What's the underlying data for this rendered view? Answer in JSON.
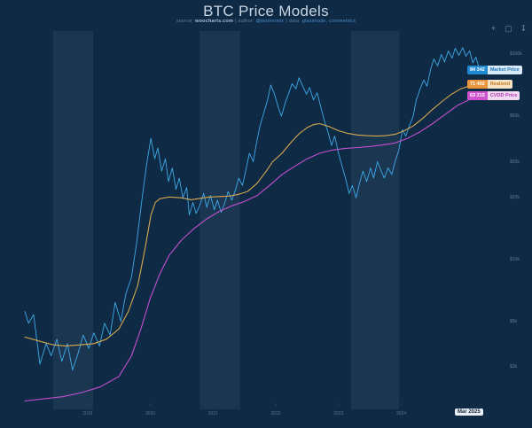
{
  "header": {
    "title": "BTC Price Models",
    "source_label": "source:",
    "source_value": "woocharts.com",
    "sep1": "|",
    "author_label": "author:",
    "author_value": "@woonomic",
    "sep2": "|",
    "data_label": "data:",
    "data_value": "glassnode, coinmetrics"
  },
  "toolbar": {
    "icons": [
      {
        "name": "zoom-in-icon",
        "glyph": "+"
      },
      {
        "name": "camera-icon",
        "glyph": "▢"
      },
      {
        "name": "download-icon",
        "glyph": "↧"
      }
    ]
  },
  "date_badge": "Mar 2025",
  "colors": {
    "background": "#0e2a44",
    "band": "rgba(190,215,240,0.07)",
    "market": "#3fa9e8",
    "realized": "#d9a84e",
    "cvdd": "#c44fd0",
    "axis_text": "#5d7da0"
  },
  "chart_data": {
    "type": "line",
    "title": "BTC Price Models",
    "x_range": [
      2018.0,
      2025.25
    ],
    "y_scale": "log",
    "y_range_usd": [
      2000,
      130000
    ],
    "units": "USD thousands",
    "grid": false,
    "legend_position": "right-edge-badges",
    "bands_t": [
      [
        2018.45,
        2019.09
      ],
      [
        2020.79,
        2021.43
      ],
      [
        2023.2,
        2023.97
      ]
    ],
    "y_ticks": [
      [
        100000,
        "$100k"
      ],
      [
        50000,
        "$50k"
      ],
      [
        30000,
        "$30k"
      ],
      [
        20000,
        "$20k"
      ],
      [
        10000,
        "$10k"
      ],
      [
        5000,
        "$5k"
      ],
      [
        3000,
        "$3k"
      ]
    ],
    "x_ticks": [
      {
        "year": 2019,
        "label": "2019"
      },
      {
        "year": 2020,
        "label": "2020"
      },
      {
        "year": 2021,
        "label": "2021"
      },
      {
        "year": 2022,
        "label": "2022"
      },
      {
        "year": 2023,
        "label": "2023"
      },
      {
        "year": 2024,
        "label": "2024"
      }
    ],
    "series": [
      {
        "name": "Market Price",
        "color": "#3fa9e8",
        "width": 0.9,
        "badge": {
          "value": "84 342",
          "label": "Market Price",
          "value_bg": "#1f8ad2",
          "label_bg": "#d8eaf8",
          "label_color": "#1d74b8"
        },
        "points": [
          [
            2018.0,
            5.6
          ],
          [
            2018.06,
            4.9
          ],
          [
            2018.14,
            5.4
          ],
          [
            2018.24,
            3.1
          ],
          [
            2018.34,
            3.9
          ],
          [
            2018.42,
            3.4
          ],
          [
            2018.51,
            4.1
          ],
          [
            2018.59,
            3.2
          ],
          [
            2018.68,
            3.9
          ],
          [
            2018.76,
            2.9
          ],
          [
            2018.85,
            3.5
          ],
          [
            2018.93,
            4.3
          ],
          [
            2019.02,
            3.7
          ],
          [
            2019.1,
            4.4
          ],
          [
            2019.19,
            3.8
          ],
          [
            2019.27,
            4.9
          ],
          [
            2019.36,
            4.3
          ],
          [
            2019.44,
            6.2
          ],
          [
            2019.53,
            5.0
          ],
          [
            2019.61,
            6.8
          ],
          [
            2019.7,
            8.2
          ],
          [
            2019.78,
            12.0
          ],
          [
            2019.87,
            20.0
          ],
          [
            2019.94,
            29.0
          ],
          [
            2020.01,
            39.0
          ],
          [
            2020.07,
            31.0
          ],
          [
            2020.12,
            35.0
          ],
          [
            2020.18,
            27.0
          ],
          [
            2020.24,
            31.0
          ],
          [
            2020.29,
            24.0
          ],
          [
            2020.35,
            28.0
          ],
          [
            2020.41,
            22.0
          ],
          [
            2020.46,
            25.0
          ],
          [
            2020.52,
            20.0
          ],
          [
            2020.58,
            22.5
          ],
          [
            2020.62,
            16.5
          ],
          [
            2020.68,
            19.0
          ],
          [
            2020.73,
            16.8
          ],
          [
            2020.79,
            18.5
          ],
          [
            2020.85,
            21.0
          ],
          [
            2020.9,
            18.0
          ],
          [
            2020.96,
            20.5
          ],
          [
            2021.02,
            17.5
          ],
          [
            2021.07,
            19.5
          ],
          [
            2021.13,
            17.0
          ],
          [
            2021.19,
            19.0
          ],
          [
            2021.24,
            21.5
          ],
          [
            2021.3,
            19.5
          ],
          [
            2021.36,
            22.0
          ],
          [
            2021.41,
            25.0
          ],
          [
            2021.47,
            23.0
          ],
          [
            2021.53,
            28.0
          ],
          [
            2021.58,
            33.0
          ],
          [
            2021.64,
            30.0
          ],
          [
            2021.7,
            38.0
          ],
          [
            2021.75,
            45.0
          ],
          [
            2021.81,
            52.0
          ],
          [
            2021.87,
            60.0
          ],
          [
            2021.92,
            71.0
          ],
          [
            2021.98,
            64.0
          ],
          [
            2022.04,
            55.0
          ],
          [
            2022.09,
            50.0
          ],
          [
            2022.15,
            58.0
          ],
          [
            2022.21,
            65.0
          ],
          [
            2022.26,
            72.0
          ],
          [
            2022.32,
            68.0
          ],
          [
            2022.37,
            77.0
          ],
          [
            2022.43,
            70.0
          ],
          [
            2022.49,
            64.0
          ],
          [
            2022.54,
            69.0
          ],
          [
            2022.6,
            60.0
          ],
          [
            2022.66,
            65.0
          ],
          [
            2022.72,
            55.0
          ],
          [
            2022.77,
            48.0
          ],
          [
            2022.83,
            42.0
          ],
          [
            2022.89,
            36.0
          ],
          [
            2022.94,
            40.0
          ],
          [
            2023.0,
            33.0
          ],
          [
            2023.05,
            29.0
          ],
          [
            2023.11,
            25.0
          ],
          [
            2023.17,
            21.0
          ],
          [
            2023.22,
            23.0
          ],
          [
            2023.28,
            20.0
          ],
          [
            2023.34,
            24.0
          ],
          [
            2023.39,
            27.0
          ],
          [
            2023.45,
            24.0
          ],
          [
            2023.51,
            28.0
          ],
          [
            2023.56,
            25.0
          ],
          [
            2023.62,
            30.0
          ],
          [
            2023.68,
            27.0
          ],
          [
            2023.73,
            25.0
          ],
          [
            2023.79,
            28.0
          ],
          [
            2023.85,
            26.0
          ],
          [
            2023.9,
            30.0
          ],
          [
            2023.96,
            34.0
          ],
          [
            2024.02,
            43.0
          ],
          [
            2024.07,
            40.0
          ],
          [
            2024.13,
            45.0
          ],
          [
            2024.19,
            50.0
          ],
          [
            2024.24,
            60.0
          ],
          [
            2024.3,
            68.0
          ],
          [
            2024.36,
            75.0
          ],
          [
            2024.41,
            70.0
          ],
          [
            2024.47,
            85.0
          ],
          [
            2024.52,
            95.0
          ],
          [
            2024.58,
            88.0
          ],
          [
            2024.64,
            100.0
          ],
          [
            2024.69,
            92.0
          ],
          [
            2024.75,
            104.0
          ],
          [
            2024.81,
            96.0
          ],
          [
            2024.86,
            107.0
          ],
          [
            2024.92,
            99.0
          ],
          [
            2024.98,
            108.0
          ],
          [
            2025.03,
            98.0
          ],
          [
            2025.09,
            104.0
          ],
          [
            2025.14,
            91.0
          ],
          [
            2025.19,
            97.0
          ],
          [
            2025.25,
            84.3
          ]
        ]
      },
      {
        "name": "Realized",
        "color": "#d9a84e",
        "width": 1.1,
        "badge": {
          "value": "71 402",
          "label": "Realized",
          "value_bg": "#e8953c",
          "label_bg": "#f6e2c4",
          "label_color": "#c27d22"
        },
        "points": [
          [
            2018.0,
            4.2
          ],
          [
            2018.25,
            4.0
          ],
          [
            2018.45,
            3.85
          ],
          [
            2018.65,
            3.8
          ],
          [
            2018.9,
            3.85
          ],
          [
            2019.1,
            3.9
          ],
          [
            2019.3,
            4.1
          ],
          [
            2019.5,
            4.6
          ],
          [
            2019.65,
            5.6
          ],
          [
            2019.8,
            7.5
          ],
          [
            2019.92,
            11.5
          ],
          [
            2020.01,
            16.5
          ],
          [
            2020.08,
            19.0
          ],
          [
            2020.15,
            19.8
          ],
          [
            2020.3,
            20.2
          ],
          [
            2020.5,
            20.0
          ],
          [
            2020.65,
            19.6
          ],
          [
            2020.8,
            19.9
          ],
          [
            2020.95,
            20.2
          ],
          [
            2021.1,
            20.3
          ],
          [
            2021.25,
            20.4
          ],
          [
            2021.4,
            20.8
          ],
          [
            2021.55,
            21.5
          ],
          [
            2021.7,
            23.5
          ],
          [
            2021.85,
            27.0
          ],
          [
            2021.95,
            30.0
          ],
          [
            2022.1,
            33.0
          ],
          [
            2022.25,
            37.5
          ],
          [
            2022.37,
            41.0
          ],
          [
            2022.5,
            44.0
          ],
          [
            2022.6,
            45.5
          ],
          [
            2022.7,
            46.0
          ],
          [
            2022.85,
            44.5
          ],
          [
            2023.0,
            42.5
          ],
          [
            2023.15,
            41.2
          ],
          [
            2023.3,
            40.5
          ],
          [
            2023.45,
            40.2
          ],
          [
            2023.6,
            40.0
          ],
          [
            2023.75,
            40.2
          ],
          [
            2023.9,
            40.8
          ],
          [
            2024.05,
            42.5
          ],
          [
            2024.2,
            45.0
          ],
          [
            2024.35,
            49.0
          ],
          [
            2024.5,
            54.0
          ],
          [
            2024.65,
            59.0
          ],
          [
            2024.8,
            64.0
          ],
          [
            2024.95,
            68.0
          ],
          [
            2025.1,
            70.5
          ],
          [
            2025.25,
            71.4
          ]
        ]
      },
      {
        "name": "CVDD Price",
        "color": "#c44fd0",
        "width": 1.1,
        "badge": {
          "value": "63 215",
          "label": "CVDD Price",
          "value_bg": "#cf52cf",
          "label_bg": "#f3d8f1",
          "label_color": "#b13cb5"
        },
        "points": [
          [
            2018.0,
            2.05
          ],
          [
            2018.3,
            2.1
          ],
          [
            2018.6,
            2.15
          ],
          [
            2018.9,
            2.25
          ],
          [
            2019.2,
            2.4
          ],
          [
            2019.5,
            2.7
          ],
          [
            2019.7,
            3.4
          ],
          [
            2019.85,
            4.6
          ],
          [
            2020.0,
            6.5
          ],
          [
            2020.15,
            8.5
          ],
          [
            2020.3,
            10.5
          ],
          [
            2020.5,
            12.5
          ],
          [
            2020.7,
            14.2
          ],
          [
            2020.9,
            15.8
          ],
          [
            2021.1,
            17.2
          ],
          [
            2021.3,
            18.3
          ],
          [
            2021.5,
            19.2
          ],
          [
            2021.7,
            20.5
          ],
          [
            2021.9,
            23.0
          ],
          [
            2022.1,
            26.0
          ],
          [
            2022.3,
            28.5
          ],
          [
            2022.5,
            31.0
          ],
          [
            2022.7,
            33.0
          ],
          [
            2022.9,
            34.2
          ],
          [
            2023.1,
            34.8
          ],
          [
            2023.3,
            35.2
          ],
          [
            2023.5,
            35.6
          ],
          [
            2023.7,
            36.2
          ],
          [
            2023.9,
            37.0
          ],
          [
            2024.1,
            39.0
          ],
          [
            2024.3,
            42.0
          ],
          [
            2024.5,
            46.0
          ],
          [
            2024.7,
            51.0
          ],
          [
            2024.9,
            56.5
          ],
          [
            2025.1,
            60.5
          ],
          [
            2025.25,
            63.2
          ]
        ]
      }
    ]
  }
}
